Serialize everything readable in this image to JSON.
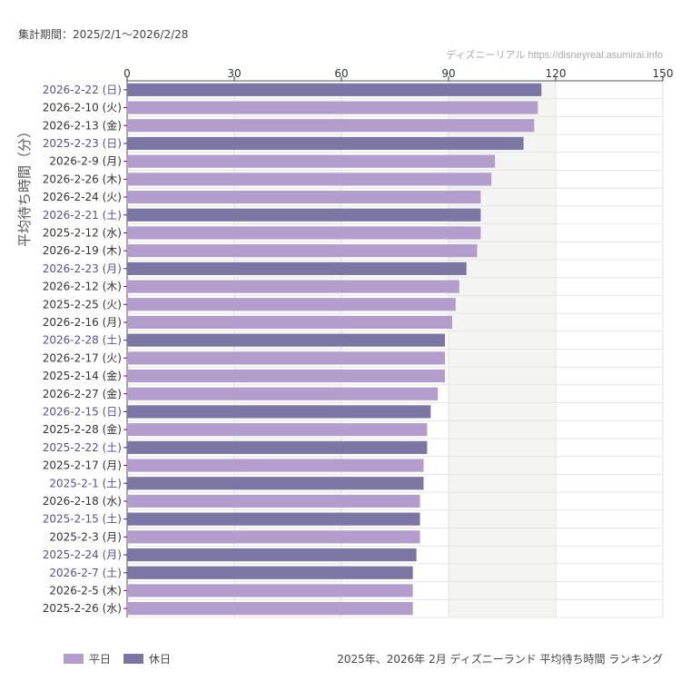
{
  "header": {
    "period": "集計期間：2025/2/1〜2026/2/28",
    "credit": "ディズニーリアル https://disneyreal.asumirai.info"
  },
  "legend": {
    "weekday": "平日",
    "holiday": "休日"
  },
  "caption": "2025年、2026年 2月 ディズニーランド 平均待ち時間 ランキング",
  "colors": {
    "weekday": "#b39dcc",
    "holiday": "#7b76a4",
    "holiday_label": "#5a4f93",
    "weekday_label": "#333333",
    "band": "#f4f5f3"
  },
  "chart_data": {
    "type": "bar",
    "orientation": "horizontal",
    "ylabel": "平均待ち時間（分）",
    "xlim": [
      0,
      150
    ],
    "xticks": [
      "0",
      "30",
      "60",
      "90",
      "120",
      "150"
    ],
    "grid": true,
    "legend_position": "bottom-left",
    "categories": [
      "2026-2-22 (日)",
      "2026-2-10 (火)",
      "2026-2-13 (金)",
      "2025-2-23 (日)",
      "2026-2-9 (月)",
      "2026-2-26 (木)",
      "2026-2-24 (火)",
      "2026-2-21 (土)",
      "2025-2-12 (水)",
      "2026-2-19 (木)",
      "2026-2-23 (月)",
      "2026-2-12 (木)",
      "2025-2-25 (火)",
      "2026-2-16 (月)",
      "2026-2-28 (土)",
      "2026-2-17 (火)",
      "2025-2-14 (金)",
      "2026-2-27 (金)",
      "2026-2-15 (日)",
      "2025-2-28 (金)",
      "2025-2-22 (土)",
      "2025-2-17 (月)",
      "2025-2-1 (土)",
      "2026-2-18 (水)",
      "2025-2-15 (土)",
      "2025-2-3 (月)",
      "2025-2-24 (月)",
      "2026-2-7 (土)",
      "2026-2-5 (木)",
      "2025-2-26 (水)"
    ],
    "values": [
      116,
      115,
      114,
      111,
      103,
      102,
      99,
      99,
      99,
      98,
      95,
      93,
      92,
      91,
      89,
      89,
      89,
      87,
      85,
      84,
      84,
      83,
      83,
      82,
      82,
      82,
      81,
      80,
      80,
      80
    ],
    "holiday": [
      true,
      false,
      false,
      true,
      false,
      false,
      false,
      true,
      false,
      false,
      true,
      false,
      false,
      false,
      true,
      false,
      false,
      false,
      true,
      false,
      true,
      false,
      true,
      false,
      true,
      false,
      true,
      true,
      false,
      false
    ]
  }
}
